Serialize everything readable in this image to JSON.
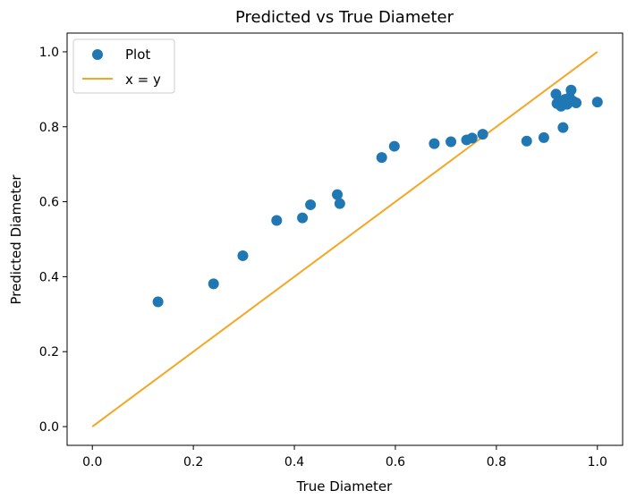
{
  "chart_data": {
    "type": "scatter",
    "title": "Predicted vs True Diameter",
    "xlabel": "True Diameter",
    "ylabel": "Predicted Diameter",
    "xlim": [
      -0.05,
      1.05
    ],
    "ylim": [
      -0.05,
      1.05
    ],
    "xticks": [
      "0.0",
      "0.2",
      "0.4",
      "0.6",
      "0.8",
      "1.0"
    ],
    "yticks": [
      "0.0",
      "0.2",
      "0.4",
      "0.6",
      "0.8",
      "1.0"
    ],
    "grid": false,
    "legend": {
      "position": "upper-left",
      "entries": [
        {
          "label": "Plot",
          "marker": "circle"
        },
        {
          "label": "x = y",
          "marker": "line"
        }
      ]
    },
    "series": [
      {
        "name": "Plot",
        "color": "#1f77b4",
        "points": [
          [
            0.13,
            0.333
          ],
          [
            0.24,
            0.381
          ],
          [
            0.298,
            0.456
          ],
          [
            0.365,
            0.55
          ],
          [
            0.416,
            0.557
          ],
          [
            0.432,
            0.592
          ],
          [
            0.485,
            0.619
          ],
          [
            0.49,
            0.595
          ],
          [
            0.573,
            0.718
          ],
          [
            0.598,
            0.748
          ],
          [
            0.677,
            0.755
          ],
          [
            0.71,
            0.76
          ],
          [
            0.741,
            0.765
          ],
          [
            0.752,
            0.77
          ],
          [
            0.773,
            0.78
          ],
          [
            0.86,
            0.762
          ],
          [
            0.894,
            0.771
          ],
          [
            0.918,
            0.887
          ],
          [
            0.92,
            0.862
          ],
          [
            0.925,
            0.868
          ],
          [
            0.928,
            0.855
          ],
          [
            0.932,
            0.798
          ],
          [
            0.936,
            0.873
          ],
          [
            0.94,
            0.86
          ],
          [
            0.945,
            0.878
          ],
          [
            0.948,
            0.898
          ],
          [
            0.952,
            0.868
          ],
          [
            0.958,
            0.864
          ],
          [
            1.0,
            0.866
          ]
        ]
      },
      {
        "name": "x = y",
        "color": "#f5a623",
        "line": [
          [
            0.0,
            0.0
          ],
          [
            1.0,
            1.0
          ]
        ]
      }
    ]
  }
}
